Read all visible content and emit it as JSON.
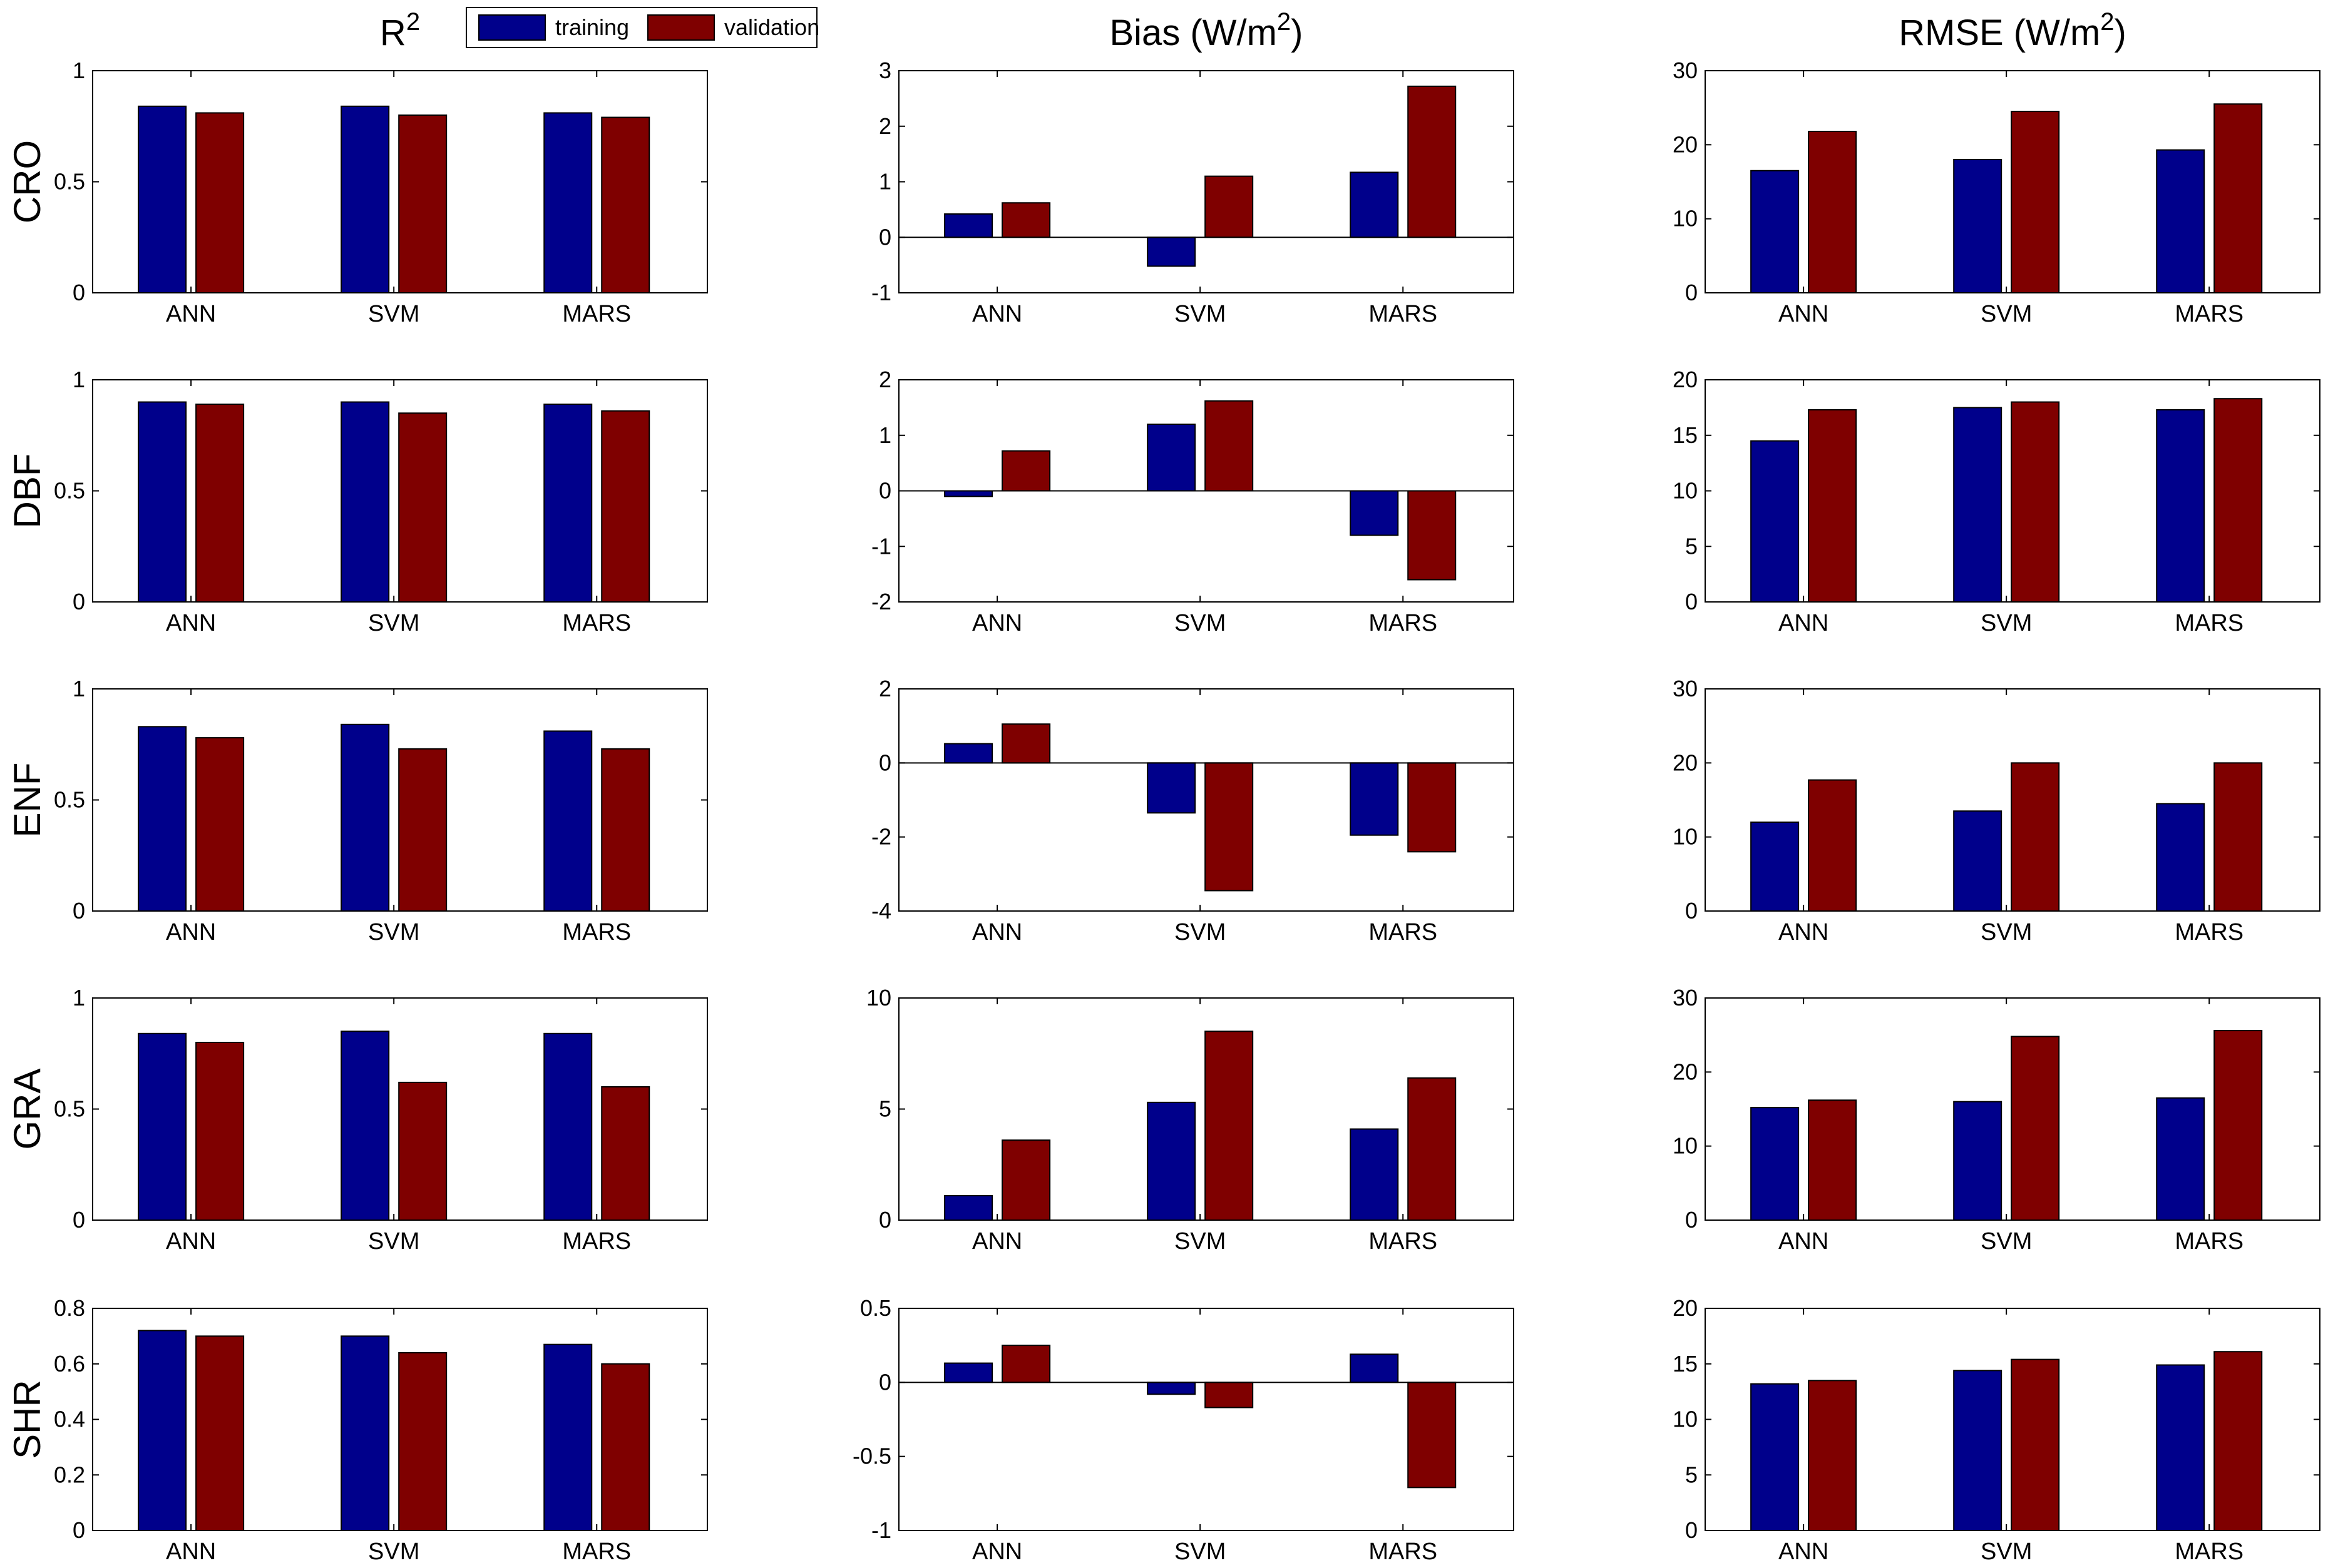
{
  "legend": {
    "placement": "top-left",
    "entries": [
      {
        "label": "training",
        "color": "#00008B"
      },
      {
        "label": "validation",
        "color": "#7F0000"
      }
    ]
  },
  "column_titles": [
    {
      "text": "R",
      "sup": "2"
    },
    {
      "text": "Bias (W/m",
      "sup": "2",
      "tail": ")"
    },
    {
      "text": "RMSE (W/m",
      "sup": "2",
      "tail": ")"
    }
  ],
  "row_labels": [
    "CRO",
    "DBF",
    "ENF",
    "GRA",
    "SHR"
  ],
  "colors": {
    "training": "#00008B",
    "validation": "#7F0000",
    "axis": "#000000"
  },
  "chart_data": [
    {
      "type": "bar",
      "row": "CRO",
      "metric": "R2",
      "categories": [
        "ANN",
        "SVM",
        "MARS"
      ],
      "series": [
        {
          "name": "training",
          "values": [
            0.84,
            0.84,
            0.81
          ]
        },
        {
          "name": "validation",
          "values": [
            0.81,
            0.8,
            0.79
          ]
        }
      ],
      "ylim": [
        0,
        1
      ],
      "yticks": [
        "0",
        "0.5",
        "1"
      ],
      "grid": false
    },
    {
      "type": "bar",
      "row": "CRO",
      "metric": "Bias",
      "categories": [
        "ANN",
        "SVM",
        "MARS"
      ],
      "series": [
        {
          "name": "training",
          "values": [
            0.42,
            -0.52,
            1.17
          ]
        },
        {
          "name": "validation",
          "values": [
            0.62,
            1.1,
            2.72
          ]
        }
      ],
      "ylim": [
        -1,
        3
      ],
      "yticks": [
        "-1",
        "0",
        "1",
        "2",
        "3"
      ],
      "grid": false
    },
    {
      "type": "bar",
      "row": "CRO",
      "metric": "RMSE",
      "categories": [
        "ANN",
        "SVM",
        "MARS"
      ],
      "series": [
        {
          "name": "training",
          "values": [
            16.5,
            18.0,
            19.3
          ]
        },
        {
          "name": "validation",
          "values": [
            21.8,
            24.5,
            25.5
          ]
        }
      ],
      "ylim": [
        0,
        30
      ],
      "yticks": [
        "0",
        "10",
        "20",
        "30"
      ],
      "grid": false
    },
    {
      "type": "bar",
      "row": "DBF",
      "metric": "R2",
      "categories": [
        "ANN",
        "SVM",
        "MARS"
      ],
      "series": [
        {
          "name": "training",
          "values": [
            0.9,
            0.9,
            0.89
          ]
        },
        {
          "name": "validation",
          "values": [
            0.89,
            0.85,
            0.86
          ]
        }
      ],
      "ylim": [
        0,
        1
      ],
      "yticks": [
        "0",
        "0.5",
        "1"
      ],
      "grid": false
    },
    {
      "type": "bar",
      "row": "DBF",
      "metric": "Bias",
      "categories": [
        "ANN",
        "SVM",
        "MARS"
      ],
      "series": [
        {
          "name": "training",
          "values": [
            -0.1,
            1.2,
            -0.8
          ]
        },
        {
          "name": "validation",
          "values": [
            0.72,
            1.62,
            -1.6
          ]
        }
      ],
      "ylim": [
        -2,
        2
      ],
      "yticks": [
        "-2",
        "-1",
        "0",
        "1",
        "2"
      ],
      "grid": false
    },
    {
      "type": "bar",
      "row": "DBF",
      "metric": "RMSE",
      "categories": [
        "ANN",
        "SVM",
        "MARS"
      ],
      "series": [
        {
          "name": "training",
          "values": [
            14.5,
            17.5,
            17.3
          ]
        },
        {
          "name": "validation",
          "values": [
            17.3,
            18.0,
            18.3
          ]
        }
      ],
      "ylim": [
        0,
        20
      ],
      "yticks": [
        "0",
        "5",
        "10",
        "15",
        "20"
      ],
      "grid": false
    },
    {
      "type": "bar",
      "row": "ENF",
      "metric": "R2",
      "categories": [
        "ANN",
        "SVM",
        "MARS"
      ],
      "series": [
        {
          "name": "training",
          "values": [
            0.83,
            0.84,
            0.81
          ]
        },
        {
          "name": "validation",
          "values": [
            0.78,
            0.73,
            0.73
          ]
        }
      ],
      "ylim": [
        0,
        1
      ],
      "yticks": [
        "0",
        "0.5",
        "1"
      ],
      "grid": false
    },
    {
      "type": "bar",
      "row": "ENF",
      "metric": "Bias",
      "categories": [
        "ANN",
        "SVM",
        "MARS"
      ],
      "series": [
        {
          "name": "training",
          "values": [
            0.52,
            -1.35,
            -1.95
          ]
        },
        {
          "name": "validation",
          "values": [
            1.05,
            -3.45,
            -2.4
          ]
        }
      ],
      "ylim": [
        -4,
        2
      ],
      "yticks": [
        "-4",
        "-2",
        "0",
        "2"
      ],
      "grid": false
    },
    {
      "type": "bar",
      "row": "ENF",
      "metric": "RMSE",
      "categories": [
        "ANN",
        "SVM",
        "MARS"
      ],
      "series": [
        {
          "name": "training",
          "values": [
            12.0,
            13.5,
            14.5
          ]
        },
        {
          "name": "validation",
          "values": [
            17.7,
            20.0,
            20.0
          ]
        }
      ],
      "ylim": [
        0,
        30
      ],
      "yticks": [
        "0",
        "10",
        "20",
        "30"
      ],
      "grid": false
    },
    {
      "type": "bar",
      "row": "GRA",
      "metric": "R2",
      "categories": [
        "ANN",
        "SVM",
        "MARS"
      ],
      "series": [
        {
          "name": "training",
          "values": [
            0.84,
            0.85,
            0.84
          ]
        },
        {
          "name": "validation",
          "values": [
            0.8,
            0.62,
            0.6
          ]
        }
      ],
      "ylim": [
        0,
        1
      ],
      "yticks": [
        "0",
        "0.5",
        "1"
      ],
      "grid": false
    },
    {
      "type": "bar",
      "row": "GRA",
      "metric": "Bias",
      "categories": [
        "ANN",
        "SVM",
        "MARS"
      ],
      "series": [
        {
          "name": "training",
          "values": [
            1.1,
            5.3,
            4.1
          ]
        },
        {
          "name": "validation",
          "values": [
            3.6,
            8.5,
            6.4
          ]
        }
      ],
      "ylim": [
        0,
        10
      ],
      "yticks": [
        "0",
        "5",
        "10"
      ],
      "grid": false
    },
    {
      "type": "bar",
      "row": "GRA",
      "metric": "RMSE",
      "categories": [
        "ANN",
        "SVM",
        "MARS"
      ],
      "series": [
        {
          "name": "training",
          "values": [
            15.2,
            16.0,
            16.5
          ]
        },
        {
          "name": "validation",
          "values": [
            16.2,
            24.8,
            25.6
          ]
        }
      ],
      "ylim": [
        0,
        30
      ],
      "yticks": [
        "0",
        "10",
        "20",
        "30"
      ],
      "grid": false
    },
    {
      "type": "bar",
      "row": "SHR",
      "metric": "R2",
      "categories": [
        "ANN",
        "SVM",
        "MARS"
      ],
      "series": [
        {
          "name": "training",
          "values": [
            0.72,
            0.7,
            0.67
          ]
        },
        {
          "name": "validation",
          "values": [
            0.7,
            0.64,
            0.6
          ]
        }
      ],
      "ylim": [
        0,
        0.8
      ],
      "yticks": [
        "0",
        "0.2",
        "0.4",
        "0.6",
        "0.8"
      ],
      "grid": false
    },
    {
      "type": "bar",
      "row": "SHR",
      "metric": "Bias",
      "categories": [
        "ANN",
        "SVM",
        "MARS"
      ],
      "series": [
        {
          "name": "training",
          "values": [
            0.13,
            -0.08,
            0.19
          ]
        },
        {
          "name": "validation",
          "values": [
            0.25,
            -0.17,
            -0.71
          ]
        }
      ],
      "ylim": [
        -1,
        0.5
      ],
      "yticks": [
        "-1",
        "-0.5",
        "0",
        "0.5"
      ],
      "grid": false
    },
    {
      "type": "bar",
      "row": "SHR",
      "metric": "RMSE",
      "categories": [
        "ANN",
        "SVM",
        "MARS"
      ],
      "series": [
        {
          "name": "training",
          "values": [
            13.2,
            14.4,
            14.9
          ]
        },
        {
          "name": "validation",
          "values": [
            13.5,
            15.4,
            16.1
          ]
        }
      ],
      "ylim": [
        0,
        20
      ],
      "yticks": [
        "0",
        "5",
        "10",
        "15",
        "20"
      ],
      "grid": false
    }
  ]
}
